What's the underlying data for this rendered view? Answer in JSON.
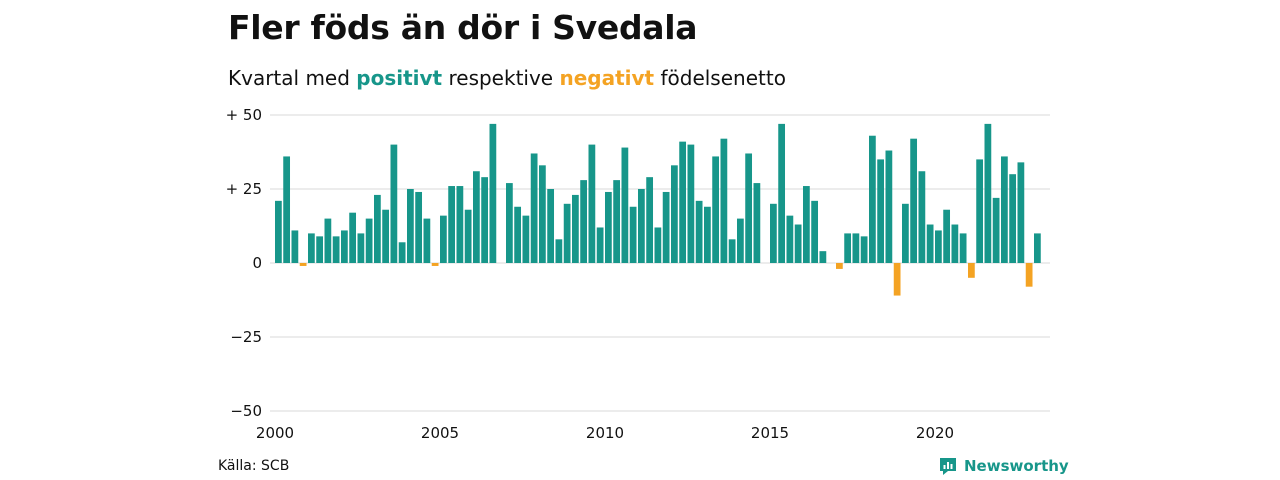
{
  "title": "Fler föds än dör i Svedala",
  "subtitle": {
    "prefix": "Kvartal med ",
    "positive_word": "positivt",
    "middle": " respektive ",
    "negative_word": "negativt",
    "suffix": " födelsenetto"
  },
  "source": "Källa: SCB",
  "brand": "Newsworthy",
  "colors": {
    "positive": "#17968a",
    "negative": "#f4a323",
    "grid": "#d9d9d9"
  },
  "chart_data": {
    "type": "bar",
    "x_start": 2000,
    "period": "quarter",
    "ylim": [
      -50,
      50
    ],
    "yticks": [
      50,
      25,
      0,
      -25,
      -50
    ],
    "ytick_labels": [
      "+ 50",
      "+ 25",
      "0",
      "−25",
      "−50"
    ],
    "xticks": [
      2000,
      2005,
      2010,
      2015,
      2020
    ],
    "grid": true,
    "values": [
      21,
      36,
      11,
      -1,
      10,
      9,
      15,
      9,
      11,
      17,
      10,
      15,
      23,
      18,
      40,
      7,
      25,
      24,
      15,
      -1,
      16,
      26,
      26,
      18,
      31,
      29,
      47,
      0,
      27,
      19,
      16,
      37,
      33,
      25,
      8,
      20,
      23,
      28,
      40,
      12,
      24,
      28,
      39,
      19,
      25,
      29,
      12,
      24,
      33,
      41,
      40,
      21,
      19,
      36,
      42,
      8,
      15,
      37,
      27,
      0,
      20,
      47,
      16,
      13,
      26,
      21,
      4,
      0,
      -2,
      10,
      10,
      9,
      43,
      35,
      38,
      -11,
      20,
      42,
      31,
      13,
      11,
      18,
      13,
      10,
      -5,
      35,
      47,
      22,
      36,
      30,
      34,
      -8,
      10
    ]
  }
}
